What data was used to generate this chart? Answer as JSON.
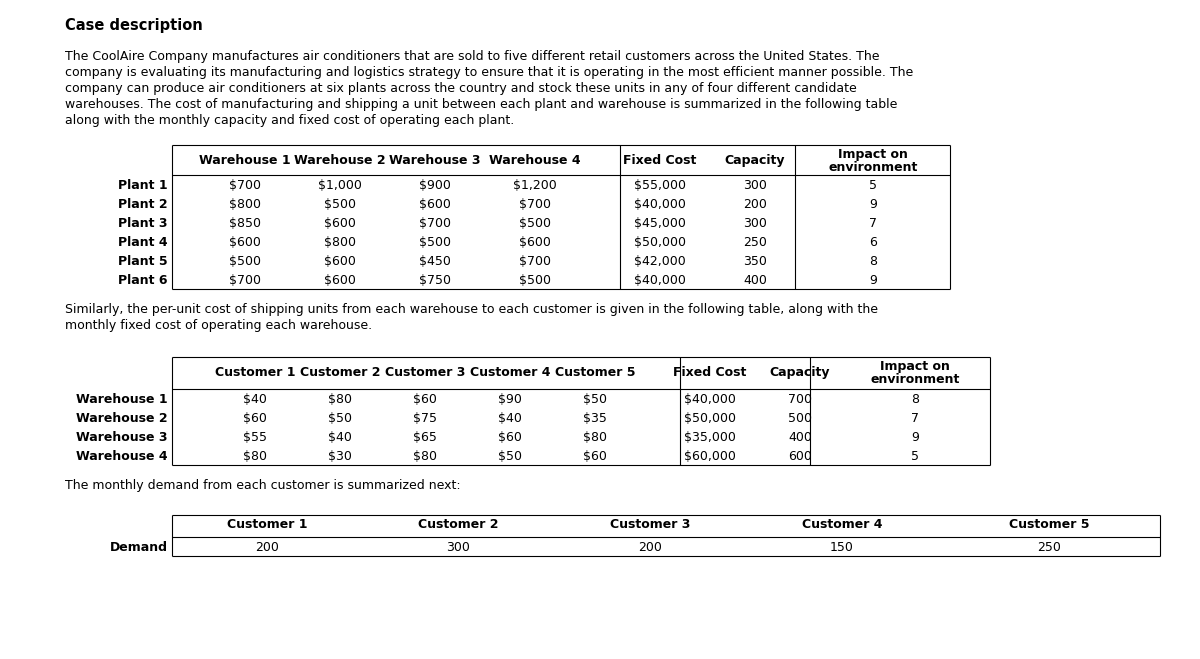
{
  "title": "Case description",
  "paragraph": "The CoolAire Company manufactures air conditioners that are sold to five different retail customers across the United States. The\ncompany is evaluating its manufacturing and logistics strategy to ensure that it is operating in the most efficient manner possible. The\ncompany can produce air conditioners at six plants across the country and stock these units in any of four different candidate\nwarehouses. The cost of manufacturing and shipping a unit between each plant and warehouse is summarized in the following table\nalong with the monthly capacity and fixed cost of operating each plant.",
  "table1_headers": [
    "",
    "Warehouse 1",
    "Warehouse 2",
    "Warehouse 3",
    "Warehouse 4",
    "Fixed Cost",
    "Capacity",
    "Impact on\nenvironment"
  ],
  "table1_rows": [
    [
      "Plant 1",
      "$700",
      "$1,000",
      "$900",
      "$1,200",
      "$55,000",
      "300",
      "5"
    ],
    [
      "Plant 2",
      "$800",
      "$500",
      "$600",
      "$700",
      "$40,000",
      "200",
      "9"
    ],
    [
      "Plant 3",
      "$850",
      "$600",
      "$700",
      "$500",
      "$45,000",
      "300",
      "7"
    ],
    [
      "Plant 4",
      "$600",
      "$800",
      "$500",
      "$600",
      "$50,000",
      "250",
      "6"
    ],
    [
      "Plant 5",
      "$500",
      "$600",
      "$450",
      "$700",
      "$42,000",
      "350",
      "8"
    ],
    [
      "Plant 6",
      "$700",
      "$600",
      "$750",
      "$500",
      "$40,000",
      "400",
      "9"
    ]
  ],
  "paragraph2": "Similarly, the per-unit cost of shipping units from each warehouse to each customer is given in the following table, along with the\nmonthly fixed cost of operating each warehouse.",
  "table2_headers": [
    "",
    "Customer 1",
    "Customer 2",
    "Customer 3",
    "Customer 4",
    "Customer 5",
    "Fixed Cost",
    "Capacity",
    "Impact on\nenvironment"
  ],
  "table2_rows": [
    [
      "Warehouse 1",
      "$40",
      "$80",
      "$60",
      "$90",
      "$50",
      "$40,000",
      "700",
      "8"
    ],
    [
      "Warehouse 2",
      "$60",
      "$50",
      "$75",
      "$40",
      "$35",
      "$50,000",
      "500",
      "7"
    ],
    [
      "Warehouse 3",
      "$55",
      "$40",
      "$65",
      "$60",
      "$80",
      "$35,000",
      "400",
      "9"
    ],
    [
      "Warehouse 4",
      "$80",
      "$30",
      "$80",
      "$50",
      "$60",
      "$60,000",
      "600",
      "5"
    ]
  ],
  "paragraph3": "The monthly demand from each customer is summarized next:",
  "table3_headers": [
    "",
    "Customer 1",
    "Customer 2",
    "Customer 3",
    "Customer 4",
    "Customer 5"
  ],
  "table3_rows": [
    [
      "Demand",
      "200",
      "300",
      "200",
      "150",
      "250"
    ]
  ],
  "bg_color": "#ffffff",
  "text_color": "#000000",
  "font_size": 9.0,
  "title_font_size": 10.5
}
